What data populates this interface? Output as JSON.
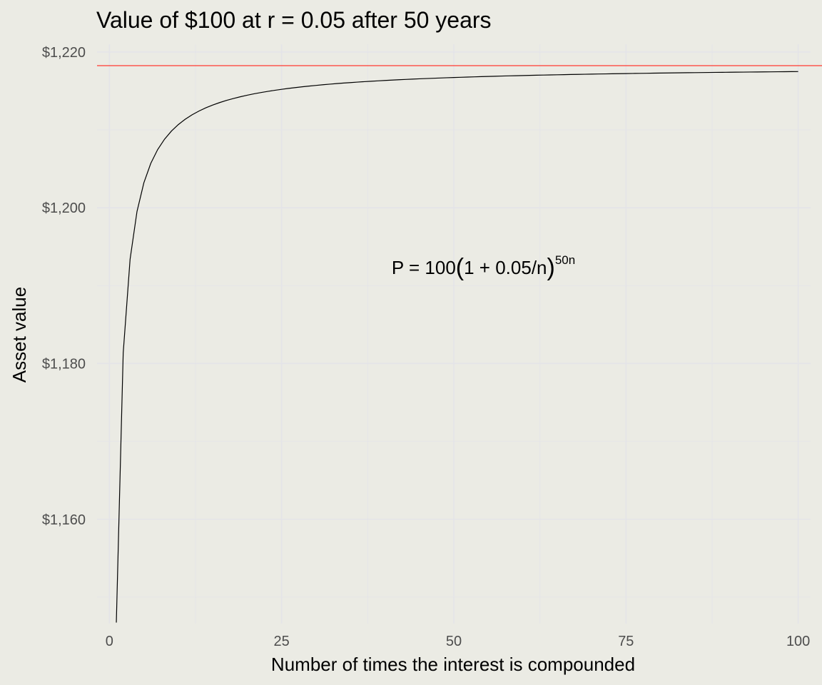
{
  "chart_data": {
    "type": "line",
    "title": "Value of $100 at r = 0.05 after 50 years",
    "xlabel": "Number of times the interest is compounded",
    "ylabel": "Asset value",
    "xlim": [
      -1.8,
      101.8
    ],
    "ylim": [
      1146.6,
      1221.0
    ],
    "x_ticks": [
      0,
      25,
      50,
      75,
      100
    ],
    "x_tick_labels": [
      "0",
      "25",
      "50",
      "75",
      "100"
    ],
    "y_ticks": [
      1160,
      1180,
      1200,
      1220
    ],
    "y_tick_labels": [
      "$1,160",
      "$1,180",
      "$1,200",
      "$1,220"
    ],
    "grid": true,
    "principal": 100,
    "rate": 0.05,
    "years": 50,
    "n_range": [
      1,
      100
    ],
    "reference_line": {
      "value": 1218.25,
      "color": "#ff3b30"
    },
    "series_color": "#000000",
    "annotation": {
      "prefix": "P = 100",
      "open_paren": "(",
      "inner": "1 + 0.05/n",
      "close_paren": ")",
      "exponent": "50n",
      "x": 56,
      "y": 1192.4
    }
  }
}
